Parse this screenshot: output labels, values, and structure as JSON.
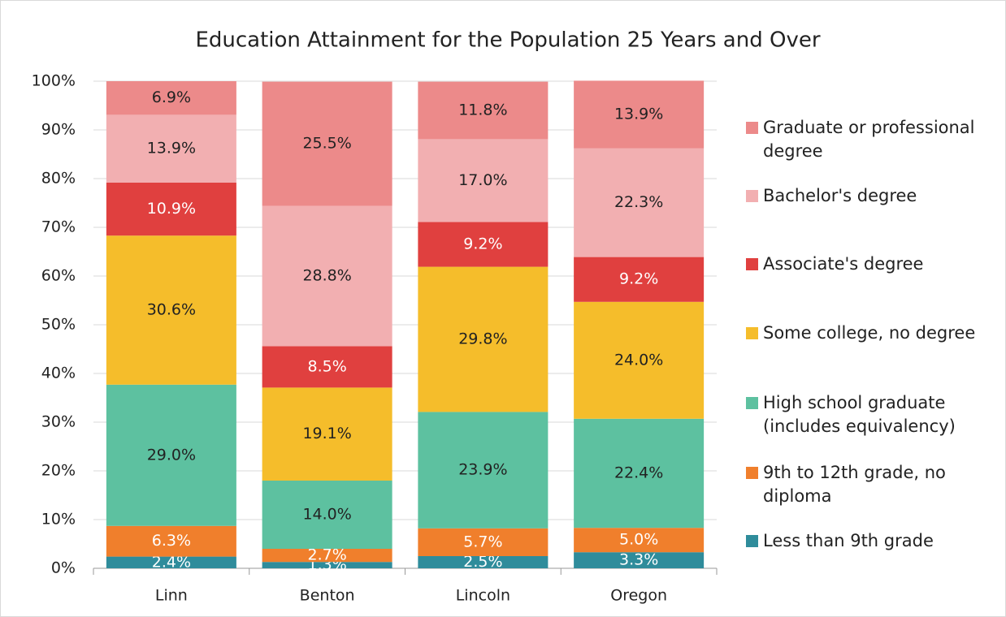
{
  "chart_data": {
    "type": "stacked_bar",
    "title": "Education Attainment for the Population 25 Years and Over",
    "categories": [
      "Linn",
      "Benton",
      "Lincoln",
      "Oregon"
    ],
    "ylim": [
      0,
      100
    ],
    "yticks": [
      {
        "value": 0,
        "label": "0%"
      },
      {
        "value": 10,
        "label": "10%"
      },
      {
        "value": 20,
        "label": "20%"
      },
      {
        "value": 30,
        "label": "30%"
      },
      {
        "value": 40,
        "label": "40%"
      },
      {
        "value": 50,
        "label": "50%"
      },
      {
        "value": 60,
        "label": "60%"
      },
      {
        "value": 70,
        "label": "70%"
      },
      {
        "value": 80,
        "label": "80%"
      },
      {
        "value": 90,
        "label": "90%"
      },
      {
        "value": 100,
        "label": "100%"
      }
    ],
    "grid": true,
    "legend": "right",
    "series": [
      {
        "name": "Less than 9th grade",
        "color": "#2f8c9b",
        "label_color": "#ffffff",
        "values": [
          2.4,
          1.3,
          2.5,
          3.3
        ],
        "value_labels": [
          "2.4%",
          "1.3%",
          "2.5%",
          "3.3%"
        ]
      },
      {
        "name": "9th to 12th grade, no diploma",
        "color": "#f07f2c",
        "label_color": "#ffffff",
        "values": [
          6.3,
          2.7,
          5.7,
          5.0
        ],
        "value_labels": [
          "6.3%",
          "2.7%",
          "5.7%",
          "5.0%"
        ]
      },
      {
        "name": "High school graduate (includes equivalency)",
        "color": "#5dc1a0",
        "label_color": "#222222",
        "values": [
          29.0,
          14.0,
          23.9,
          22.4
        ],
        "value_labels": [
          "29.0%",
          "14.0%",
          "23.9%",
          "22.4%"
        ]
      },
      {
        "name": "Some college, no degree",
        "color": "#f5bd2b",
        "label_color": "#222222",
        "values": [
          30.6,
          19.1,
          29.8,
          24.0
        ],
        "value_labels": [
          "30.6%",
          "19.1%",
          "29.8%",
          "24.0%"
        ]
      },
      {
        "name": "Associate's degree",
        "color": "#e0403f",
        "label_color": "#ffffff",
        "values": [
          10.9,
          8.5,
          9.2,
          9.2
        ],
        "value_labels": [
          "10.9%",
          "8.5%",
          "9.2%",
          "9.2%"
        ]
      },
      {
        "name": "Bachelor's degree",
        "color": "#f2afb1",
        "label_color": "#222222",
        "values": [
          13.9,
          28.8,
          17.0,
          22.3
        ],
        "value_labels": [
          "13.9%",
          "28.8%",
          "17.0%",
          "22.3%"
        ]
      },
      {
        "name": "Graduate or professional degree",
        "color": "#ec8a8a",
        "label_color": "#222222",
        "values": [
          6.9,
          25.5,
          11.8,
          13.9
        ],
        "value_labels": [
          "6.9%",
          "25.5%",
          "11.8%",
          "13.9%"
        ]
      }
    ]
  }
}
